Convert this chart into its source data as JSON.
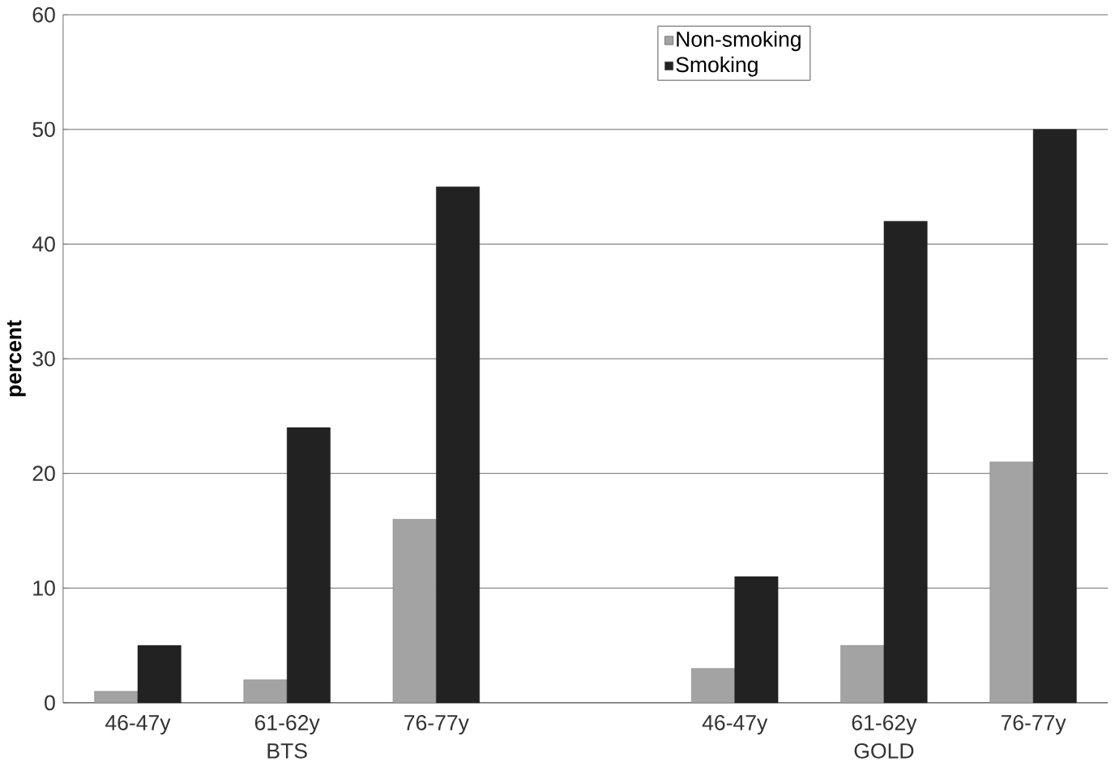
{
  "chart_data": {
    "type": "bar",
    "ylabel": "percent",
    "categories": [
      "46-47y",
      "61-62y",
      "76-77y",
      null,
      "46-47y",
      "61-62y",
      "76-77y"
    ],
    "series": [
      {
        "name": "Non-smoking",
        "color": "#a3a3a3",
        "values": [
          1,
          2,
          16,
          null,
          3,
          5,
          21
        ]
      },
      {
        "name": "Smoking",
        "color": "#222222",
        "values": [
          5,
          24,
          45,
          null,
          11,
          42,
          50
        ]
      }
    ],
    "ylim": [
      0,
      60
    ],
    "yticks": [
      0,
      10,
      20,
      30,
      40,
      50,
      60
    ],
    "grid": "y",
    "legend": "top right",
    "annotations": [
      "BTS",
      "GOLD"
    ]
  }
}
